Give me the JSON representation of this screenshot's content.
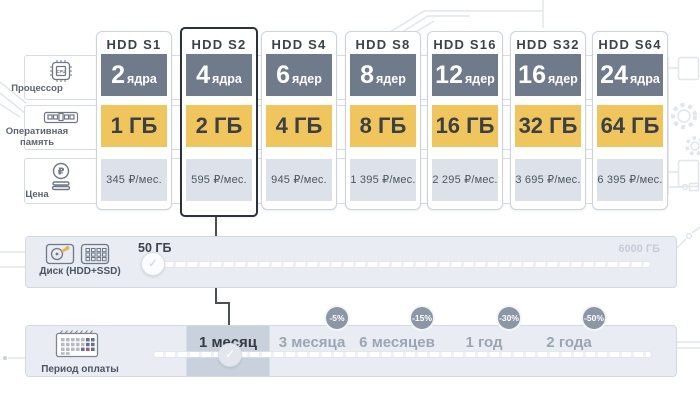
{
  "plans": {
    "rows": [
      {
        "name": "processor",
        "label": "Процессор"
      },
      {
        "name": "ram",
        "label": "Оперативная память"
      },
      {
        "name": "price",
        "label": "Цена"
      }
    ],
    "cards": [
      {
        "title": "HDD S1",
        "cores": "2",
        "cores_unit": "ядра",
        "ram": "1 ГБ",
        "price": "345 ₽/мес.",
        "selected": false
      },
      {
        "title": "HDD S2",
        "cores": "4",
        "cores_unit": "ядра",
        "ram": "2 ГБ",
        "price": "595 ₽/мес.",
        "selected": true
      },
      {
        "title": "HDD S4",
        "cores": "6",
        "cores_unit": "ядер",
        "ram": "4 ГБ",
        "price": "945 ₽/мес.",
        "selected": false
      },
      {
        "title": "HDD S8",
        "cores": "8",
        "cores_unit": "ядер",
        "ram": "8 ГБ",
        "price": "1 395 ₽/мес.",
        "selected": false
      },
      {
        "title": "HDD S16",
        "cores": "12",
        "cores_unit": "ядер",
        "ram": "16 ГБ",
        "price": "2 295 ₽/мес.",
        "selected": false
      },
      {
        "title": "HDD S32",
        "cores": "16",
        "cores_unit": "ядер",
        "ram": "32 ГБ",
        "price": "3 695 ₽/мес.",
        "selected": false
      },
      {
        "title": "HDD S64",
        "cores": "24",
        "cores_unit": "ядра",
        "ram": "64 ГБ",
        "price": "6 395 ₽/мес.",
        "selected": false
      }
    ]
  },
  "disk_slider": {
    "label": "Диск (HDD+SSD)",
    "current_value": "50 ГБ",
    "max_value": "6000 ГБ"
  },
  "payment_period": {
    "label": "Период оплаты",
    "options": [
      {
        "label": "1 месяц",
        "discount": null,
        "selected": true
      },
      {
        "label": "3 месяца",
        "discount": "-5%",
        "selected": false
      },
      {
        "label": "6 месяцев",
        "discount": "-15%",
        "selected": false
      },
      {
        "label": "1 год",
        "discount": "-30%",
        "selected": false
      },
      {
        "label": "2 года",
        "discount": "-50%",
        "selected": false
      }
    ]
  },
  "icons": {
    "check_glyph": "✓"
  },
  "colors": {
    "cores_block": "#6f7a8b",
    "ram_block": "#f0c55c",
    "price_block": "#dde2ea",
    "panel_bg": "#e9edf3",
    "selected_cell": "#c8d1dc",
    "badge": "#8b97a7",
    "selected_card_border": "#2b323c",
    "connector": "#4a5058"
  }
}
